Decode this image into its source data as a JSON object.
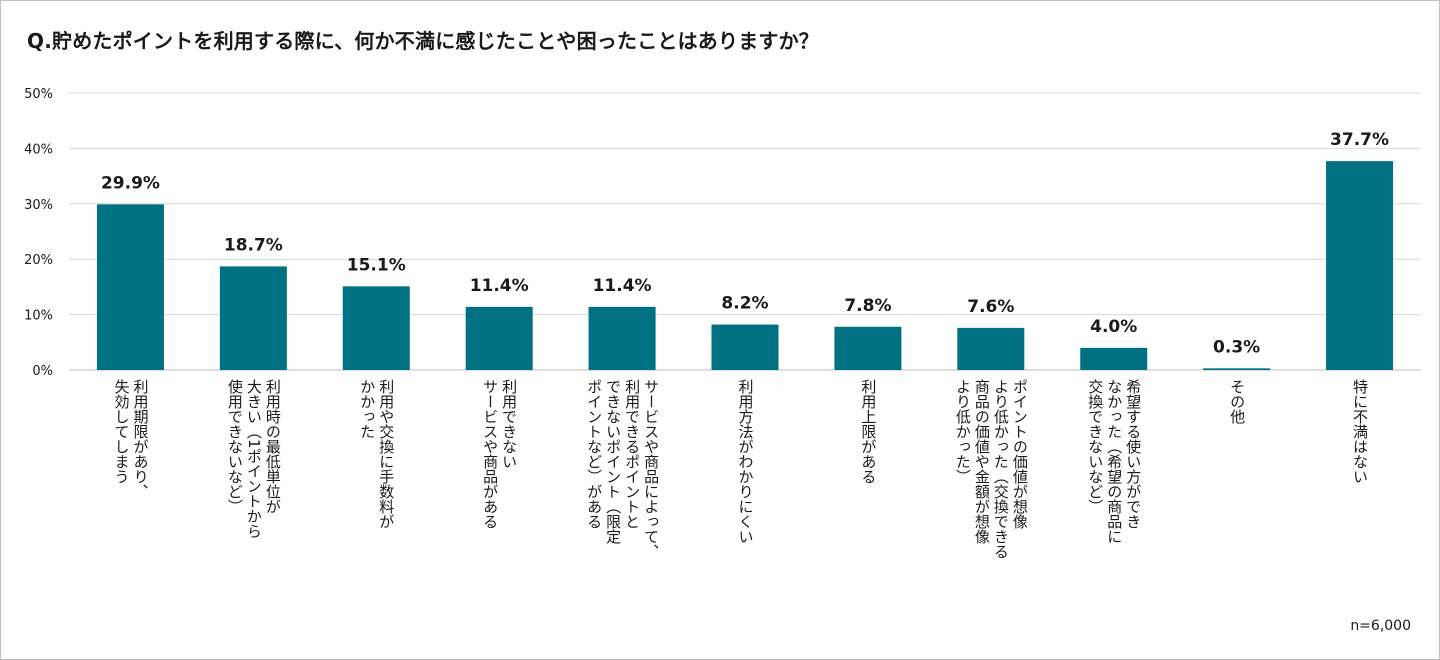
{
  "title": "Q.貯めたポイントを利用する際に、何か不満に感じたことや困ったことはありますか？",
  "note": "n=6,000",
  "colors": {
    "bar": "#007182",
    "grid": "#d9d9d9",
    "text": "#1a1a1a"
  },
  "chart_data": {
    "type": "bar",
    "title": "Q.貯めたポイントを利用する際に、何か不満に感じたことや困ったことはありますか？",
    "ylim": [
      0,
      50
    ],
    "yticks": [
      "0%",
      "10%",
      "20%",
      "30%",
      "40%",
      "50%"
    ],
    "grid": true,
    "categories": [
      "利用期限があり、\n失効してしまう",
      "利用時の最低単位が\n大きい（1ポイントから\n使用できないなど）",
      "利用や交換に手数料が\nかかった",
      "利用できない\nサービスや商品がある",
      "サービスや商品によって、\n利用できるポイントと\nできないポイント（限定\nポイントなど）がある",
      "利用方法がわかりにくい",
      "利用上限がある",
      "ポイントの価値が想像\nより低かった（交換できる\n商品の価値や金額が想像\nより低かった）",
      "希望する使い方ができ\nなかった（希望の商品に\n交換できないなど）",
      "その他",
      "特に不満はない"
    ],
    "values": [
      29.9,
      18.7,
      15.1,
      11.4,
      11.4,
      8.2,
      7.8,
      7.6,
      4.0,
      0.3,
      37.7
    ],
    "value_labels": [
      "29.9%",
      "18.7%",
      "15.1%",
      "11.4%",
      "11.4%",
      "8.2%",
      "7.8%",
      "7.6%",
      "4.0%",
      "0.3%",
      "37.7%"
    ]
  }
}
